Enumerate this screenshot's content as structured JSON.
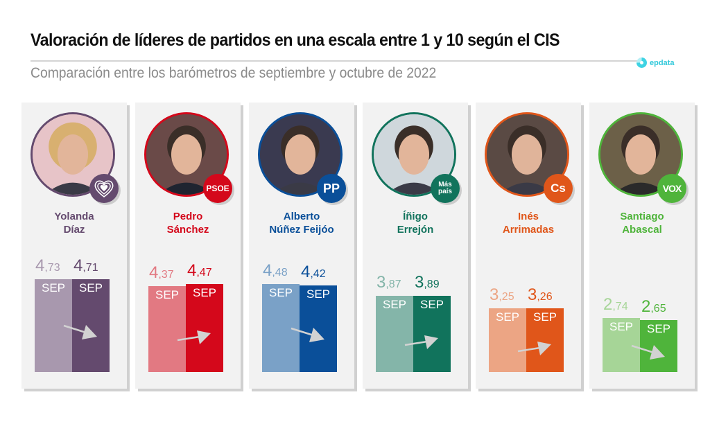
{
  "header": {
    "title": "Valoración de líderes de partidos en una escala entre 1 y 10 según el CIS",
    "subtitle": "Comparación entre los barómetros de septiembre y octubre de 2022",
    "logo_text": "epdata"
  },
  "chart_data": {
    "type": "bar",
    "title": "Valoración de líderes de partidos en una escala entre 1 y 10 según el CIS",
    "subtitle": "Comparación entre los barómetros de septiembre y octubre de 2022",
    "xlabel": "",
    "ylabel": "",
    "ylim": [
      0,
      10
    ],
    "grid": false,
    "decimal_separator": ",",
    "categories": [
      "Yolanda Díaz",
      "Pedro Sánchez",
      "Alberto Núñez Feijóo",
      "Íñigo Errejón",
      "Inés Arrimadas",
      "Santiago Abascal"
    ],
    "series": [
      {
        "name": "Septiembre",
        "bar_label": "SEP",
        "values": [
          4.73,
          4.37,
          4.48,
          3.87,
          3.25,
          2.74
        ]
      },
      {
        "name": "Octubre",
        "bar_label": "SEP",
        "values": [
          4.71,
          4.47,
          4.42,
          3.89,
          3.26,
          2.65
        ]
      }
    ]
  },
  "leaders": [
    {
      "first": "Yolanda",
      "last": "Díaz",
      "party": "Sumar",
      "badge_text": "",
      "badge_icon": "heart-icon",
      "color": "#644a6e",
      "light": "#a898ae",
      "sep": "4,73",
      "oct": "4,71",
      "sep_int": "4",
      "sep_dec": ",73",
      "oct_int": "4",
      "oct_dec": ",71"
    },
    {
      "first": "Pedro",
      "last": "Sánchez",
      "party": "PSOE",
      "badge_text": "PSOE",
      "badge_icon": "psoe-logo-icon",
      "color": "#d4081b",
      "light": "#e27982",
      "sep": "4,37",
      "oct": "4,47",
      "sep_int": "4",
      "sep_dec": ",37",
      "oct_int": "4",
      "oct_dec": ",47"
    },
    {
      "first": "Alberto",
      "last": "Núñez Feijóo",
      "party": "PP",
      "badge_text": "PP",
      "badge_icon": "pp-logo-icon",
      "color": "#0a4f99",
      "light": "#7aa1c7",
      "sep": "4,48",
      "oct": "4,42",
      "sep_int": "4",
      "sep_dec": ",48",
      "oct_int": "4",
      "oct_dec": ",42"
    },
    {
      "first": "Íñigo",
      "last": "Errejón",
      "party": "Más País",
      "badge_text": "Más país",
      "badge_icon": "mas-pais-logo-icon",
      "color": "#11735c",
      "light": "#84b5a9",
      "sep": "3,87",
      "oct": "3,89",
      "sep_int": "3",
      "sep_dec": ",87",
      "oct_int": "3",
      "oct_dec": ",89"
    },
    {
      "first": "Inés",
      "last": "Arrimadas",
      "party": "Cs",
      "badge_text": "Cs",
      "badge_icon": "cs-logo-icon",
      "color": "#e0561a",
      "light": "#eca584",
      "sep": "3,25",
      "oct": "3,26",
      "sep_int": "3",
      "sep_dec": ",25",
      "oct_int": "3",
      "oct_dec": ",26"
    },
    {
      "first": "Santiago",
      "last": "Abascal",
      "party": "VOX",
      "badge_text": "VOX",
      "badge_icon": "vox-logo-icon",
      "color": "#4fb43b",
      "light": "#a6d597",
      "sep": "2,74",
      "oct": "2,65",
      "sep_int": "2",
      "sep_dec": ",74",
      "oct_int": "2",
      "oct_dec": ",65"
    }
  ]
}
